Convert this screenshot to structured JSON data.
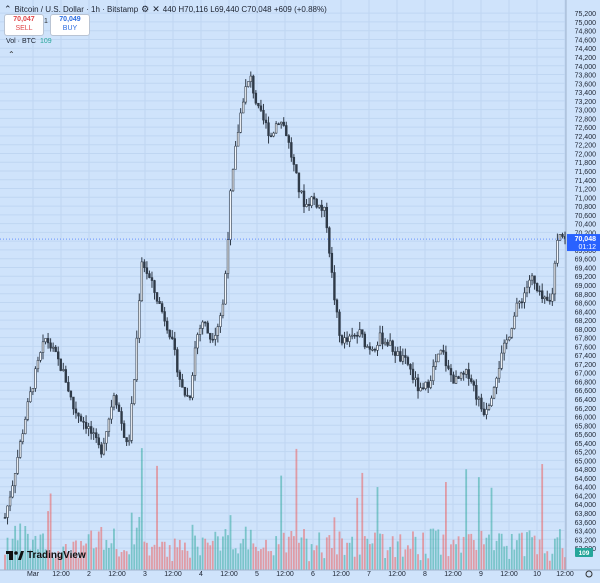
{
  "header": {
    "symbol": "Bitcoin / U.S. Dollar · 1h · Bitstamp",
    "ohlc": "440 H70,116 L69,440 C70,048 +609 (+0.88%)"
  },
  "trade": {
    "sell_price": "70,047",
    "sell_label": "SELL",
    "spread": "1",
    "buy_price": "70,049",
    "buy_label": "BUY"
  },
  "volume_legend": {
    "label": "Vol · BTC",
    "value": "109"
  },
  "branding": {
    "logo_text": "TradingView"
  },
  "colors": {
    "up": "#26a69a",
    "down": "#ef5350",
    "background": "#cfe3fb",
    "grid": "#bfd6f2",
    "last_price": "#2962ff",
    "volume_badge": "#26a69a"
  },
  "chart_data": {
    "type": "candlestick",
    "ylim": [
      62500,
      75500
    ],
    "y_ticks": [
      "63,000",
      "63,200",
      "63,400",
      "63,600",
      "63,800",
      "64,000",
      "64,200",
      "64,400",
      "64,600",
      "64,800",
      "65,000",
      "65,200",
      "65,400",
      "65,600",
      "65,800",
      "66,000",
      "66,200",
      "66,400",
      "66,600",
      "66,800",
      "67,000",
      "67,200",
      "67,400",
      "67,600",
      "67,800",
      "68,000",
      "68,200",
      "68,400",
      "68,600",
      "68,800",
      "69,000",
      "69,200",
      "69,400",
      "69,600",
      "69,800",
      "70,000",
      "70,200",
      "70,400",
      "70,600",
      "70,800",
      "71,000",
      "71,200",
      "71,400",
      "71,600",
      "71,800",
      "72,000",
      "72,200",
      "72,400",
      "72,600",
      "72,800",
      "73,000",
      "73,200",
      "73,400",
      "73,600",
      "73,800",
      "74,000",
      "74,200",
      "74,400",
      "74,600",
      "74,800",
      "75,000",
      "75,200"
    ],
    "x_ticks": [
      "Mar",
      "12:00",
      "2",
      "12:00",
      "3",
      "12:00",
      "4",
      "12:00",
      "5",
      "12:00",
      "6",
      "12:00",
      "7",
      "12:00",
      "8",
      "12:00",
      "9",
      "12:00",
      "10",
      "12:00"
    ],
    "last_price": {
      "value": 70048,
      "label": "70,048",
      "countdown": "01:12"
    },
    "volume_last": {
      "label": "109"
    },
    "close_path": [
      63700,
      64400,
      65200,
      66000,
      66700,
      67300,
      67800,
      67500,
      67200,
      66800,
      66200,
      66000,
      65800,
      65500,
      65200,
      65800,
      66600,
      65900,
      65200,
      67000,
      69600,
      69200,
      68800,
      68400,
      68000,
      67300,
      66600,
      66400,
      67800,
      68200,
      67800,
      68000,
      68600,
      71000,
      72400,
      73400,
      73700,
      73000,
      72700,
      72400,
      72800,
      72600,
      71900,
      71200,
      70800,
      71000,
      70800,
      70600,
      69000,
      67800,
      67700,
      67800,
      67900,
      67600,
      67600,
      67800,
      67700,
      67500,
      67300,
      67200,
      66800,
      66500,
      66800,
      67200,
      67500,
      67000,
      66800,
      66900,
      67000,
      66500,
      66100,
      66400,
      67000,
      67500,
      68000,
      68500,
      68800,
      69200,
      68800,
      68600,
      68600,
      70300,
      70048
    ],
    "volume_range": [
      0,
      2
    ]
  }
}
